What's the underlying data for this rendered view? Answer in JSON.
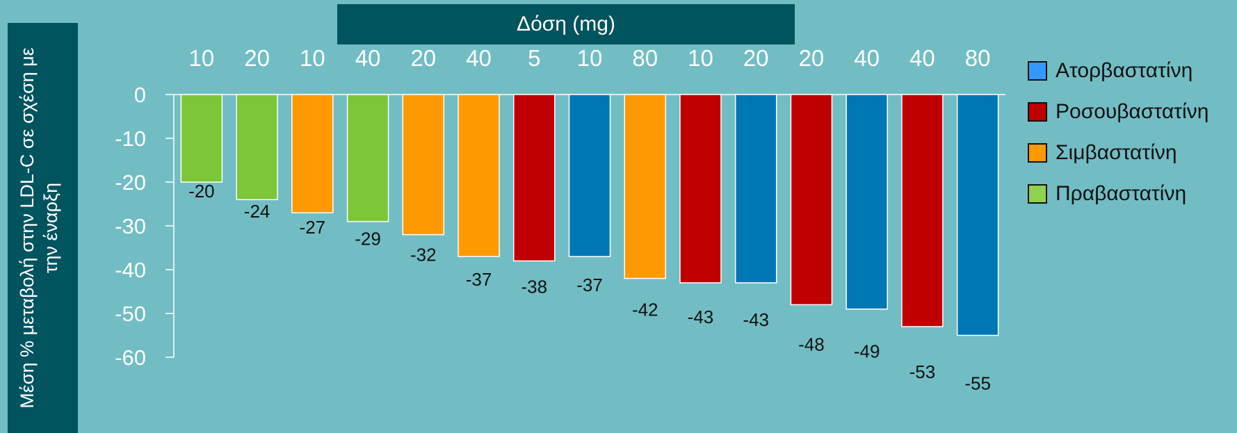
{
  "header": {
    "dose_label": "Δόση (mg)"
  },
  "yaxis_label": "Μέση % μεταβολή στην LDL-C σε σχέση με την έναρξη",
  "colors": {
    "Ατορβαστατίνη": "#0077b5",
    "Ροσουβαστατίνη": "#c00000",
    "Σιμβαστατίνη": "#ff9900",
    "Πραβαστατίνη": "#7dc637"
  },
  "legend": [
    {
      "label": "Ατορβαστατίνη",
      "swatch": "#3399ff"
    },
    {
      "label": "Ροσουβαστατίνη",
      "swatch": "#c00000"
    },
    {
      "label": "Σιμβαστατίνη",
      "swatch": "#ff9900"
    },
    {
      "label": "Πραβαστατίνη",
      "swatch": "#92d050"
    }
  ],
  "chart_data": {
    "type": "bar",
    "categories": [
      "10",
      "20",
      "10",
      "40",
      "20",
      "40",
      "5",
      "10",
      "80",
      "10",
      "20",
      "20",
      "40",
      "40",
      "80"
    ],
    "drugs": [
      "Πραβαστατίνη",
      "Πραβαστατίνη",
      "Σιμβαστατίνη",
      "Πραβαστατίνη",
      "Σιμβαστατίνη",
      "Σιμβαστατίνη",
      "Ροσουβαστατίνη",
      "Ατορβαστατίνη",
      "Σιμβαστατίνη",
      "Ροσουβαστατίνη",
      "Ατορβαστατίνη",
      "Ροσουβαστατίνη",
      "Ατορβαστατίνη",
      "Ροσουβαστατίνη",
      "Ατορβαστατίνη"
    ],
    "values": [
      -20,
      -24,
      -27,
      -29,
      -32,
      -37,
      -38,
      -37,
      -42,
      -43,
      -43,
      -48,
      -49,
      -53,
      -55
    ],
    "xlabel": "Δόση (mg)",
    "ylabel": "Μέση % μεταβολή στην LDL-C σε σχέση με την έναρξη",
    "ylim": [
      -60,
      0
    ],
    "yticks": [
      "0",
      "-10",
      "-20",
      "-30",
      "-40",
      "-50",
      "-60"
    ],
    "grid": false,
    "legend_position": "right"
  }
}
